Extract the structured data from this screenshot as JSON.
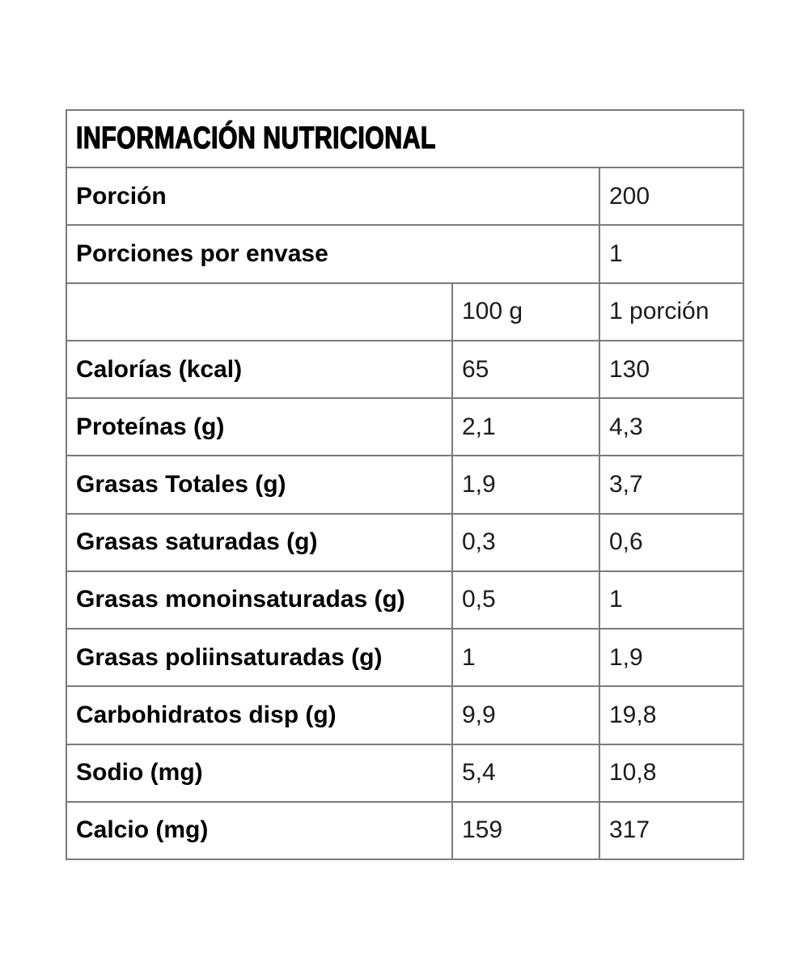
{
  "table": {
    "title": "INFORMACIÓN NUTRICIONAL",
    "serving_rows": [
      {
        "label": "Porción",
        "value": "200"
      },
      {
        "label": "Porciones por envase",
        "value": "1"
      }
    ],
    "column_headers": {
      "label": "",
      "per_100g": "100 g",
      "per_portion": "1 porción"
    },
    "nutrient_rows": [
      {
        "label": "Calorías (kcal)",
        "per_100g": "65",
        "per_portion": "130"
      },
      {
        "label": "Proteínas (g)",
        "per_100g": "2,1",
        "per_portion": "4,3"
      },
      {
        "label": "Grasas Totales (g)",
        "per_100g": "1,9",
        "per_portion": "3,7"
      },
      {
        "label": "Grasas saturadas (g)",
        "per_100g": "0,3",
        "per_portion": "0,6"
      },
      {
        "label": "Grasas monoinsaturadas (g)",
        "per_100g": "0,5",
        "per_portion": "1"
      },
      {
        "label": "Grasas poliinsaturadas (g)",
        "per_100g": "1",
        "per_portion": "1,9"
      },
      {
        "label": "Carbohidratos disp (g)",
        "per_100g": "9,9",
        "per_portion": "19,8"
      },
      {
        "label": "Sodio (mg)",
        "per_100g": "5,4",
        "per_portion": "10,8"
      },
      {
        "label": "Calcio (mg)",
        "per_100g": "159",
        "per_portion": "317"
      }
    ],
    "colors": {
      "border": "#7b7b7b",
      "text": "#000000",
      "background": "#ffffff"
    }
  }
}
